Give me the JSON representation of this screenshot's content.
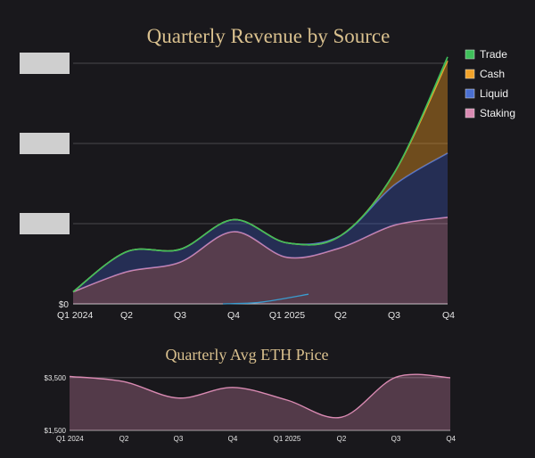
{
  "chart_data": [
    {
      "type": "area",
      "stacked": true,
      "title": "Quarterly Revenue by Source",
      "x_tick_labels": [
        "Q1 2024",
        "Q2",
        "Q3",
        "Q4",
        "Q1 2025",
        "Q2",
        "Q3",
        "Q4"
      ],
      "y_tick_labels": [
        "$0"
      ],
      "y_tick_labels_redacted": 3,
      "ylim": [
        0,
        300
      ],
      "legend_position": "top-right",
      "series": [
        {
          "name": "Staking",
          "color": "#d98ab2",
          "values": [
            15,
            40,
            52,
            90,
            58,
            70,
            98,
            108
          ]
        },
        {
          "name": "Liquid",
          "color": "#4a6fd1",
          "values": [
            0,
            25,
            16,
            15,
            18,
            15,
            50,
            80
          ]
        },
        {
          "name": "Cash",
          "color": "#f2a32a",
          "values": [
            0,
            0,
            0,
            0,
            0,
            0,
            15,
            115
          ]
        },
        {
          "name": "Trade",
          "color": "#3fbf5a",
          "values": [
            0,
            0,
            0,
            0,
            0,
            0,
            0,
            5
          ]
        }
      ],
      "overlay_line": {
        "color": "#3a9ccf",
        "x": [
          2.8,
          3.5,
          4.4
        ],
        "values": [
          0,
          2,
          12
        ]
      }
    },
    {
      "type": "area",
      "title": "Quarterly Avg ETH Price",
      "x_tick_labels": [
        "Q1 2024",
        "Q2",
        "Q3",
        "Q4",
        "Q1 2025",
        "Q2",
        "Q3",
        "Q4"
      ],
      "y_tick_labels": [
        "$3,500",
        "$1,500"
      ],
      "ylim": [
        1500,
        3700
      ],
      "series": [
        {
          "name": "ETH Price",
          "color": "#d98ab2",
          "values": [
            3550,
            3350,
            2730,
            3130,
            2650,
            2000,
            3520,
            3500
          ]
        }
      ]
    }
  ]
}
